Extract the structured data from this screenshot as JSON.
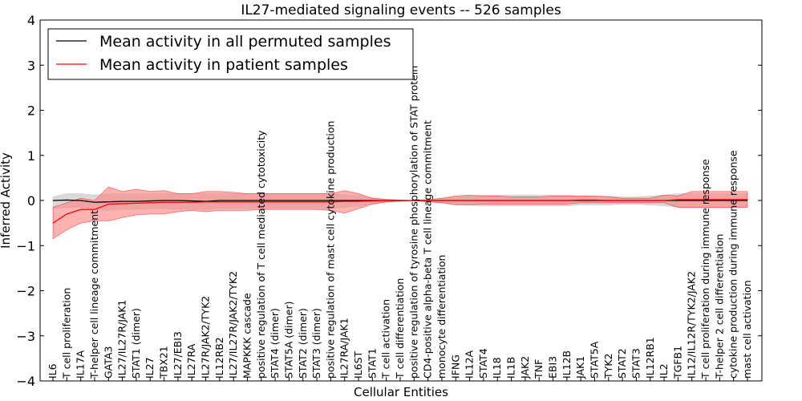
{
  "chart_data": {
    "type": "line",
    "title": "IL27-mediated signaling events -- 526 samples",
    "xlabel": "Cellular Entities",
    "ylabel": "Inferred Activity",
    "ylim": [
      -4,
      4
    ],
    "yticks": [
      "−4",
      "−3",
      "−2",
      "−1",
      "0",
      "1",
      "2",
      "3",
      "4"
    ],
    "legend_position": "top-left",
    "colors": {
      "permuted": "#000000",
      "patient": "#ff0000",
      "permuted_band": "#bbbbbb",
      "patient_band": "#ff7f7f"
    },
    "categories": [
      "IL6",
      "T cell proliferation",
      "IL17A",
      "T-helper cell lineage commitment",
      "GATA3",
      "IL27/IL27R/JAK1",
      "STAT1 (dimer)",
      "IL27",
      "TBX21",
      "IL27/EBI3",
      "IL27RA",
      "IL27R/JAK2/TYK2",
      "IL12RB2",
      "IL27/IL27R/JAK2/TYK2",
      "MAPKKK cascade",
      "positive regulation of T cell mediated cytotoxicity",
      "STAT4 (dimer)",
      "STAT5A (dimer)",
      "STAT2 (dimer)",
      "STAT3 (dimer)",
      "positive regulation of mast cell cytokine production",
      "IL27RA/JAK1",
      "IL6ST",
      "STAT1",
      "T cell activation",
      "T cell differentiation",
      "positive regulation of tyrosine phosphorylation of STAT protein",
      "CD4-positive alpha-beta T cell lineage commitment",
      "monocyte differentiation",
      "IFNG",
      "IL12A",
      "STAT4",
      "IL18",
      "IL1B",
      "JAK2",
      "TNF",
      "EBI3",
      "IL12B",
      "JAK1",
      "STAT5A",
      "TYK2",
      "STAT2",
      "STAT3",
      "IL12RB1",
      "IL2",
      "TGFB1",
      "IL12/IL12R/TYK2/JAK2",
      "T cell proliferation during immune response",
      "T-helper 2 cell differentiation",
      "cytokine production during immune response",
      "mast cell activation"
    ],
    "series": [
      {
        "name": "Mean activity in all permuted samples",
        "values": [
          0.0,
          0.01,
          0.0,
          -0.04,
          -0.03,
          -0.02,
          -0.02,
          -0.01,
          0.0,
          0.0,
          -0.01,
          -0.02,
          0.0,
          0.0,
          0.0,
          0.0,
          0.0,
          0.0,
          0.0,
          0.0,
          0.0,
          0.0,
          0.0,
          0.0,
          0.0,
          0.0,
          0.0,
          0.0,
          0.0,
          0.0,
          0.0,
          0.0,
          0.0,
          0.0,
          0.0,
          0.0,
          0.0,
          0.0,
          0.0,
          0.0,
          0.0,
          0.0,
          0.0,
          0.0,
          0.0,
          0.0,
          0.0,
          0.0,
          0.0,
          0.0,
          0.0
        ],
        "lower": [
          -0.18,
          -0.15,
          -0.15,
          -0.2,
          -0.22,
          -0.2,
          -0.2,
          -0.18,
          -0.18,
          -0.2,
          -0.2,
          -0.2,
          -0.18,
          -0.18,
          -0.18,
          -0.18,
          -0.18,
          -0.18,
          -0.18,
          -0.18,
          -0.18,
          -0.15,
          -0.12,
          -0.08,
          -0.04,
          -0.02,
          0.0,
          -0.02,
          -0.05,
          -0.08,
          -0.1,
          -0.12,
          -0.12,
          -0.12,
          -0.12,
          -0.12,
          -0.12,
          -0.12,
          -0.1,
          -0.1,
          -0.1,
          -0.08,
          -0.08,
          -0.1,
          -0.12,
          -0.15,
          -0.15,
          -0.15,
          -0.15,
          -0.15,
          -0.15
        ],
        "upper": [
          0.08,
          0.15,
          0.15,
          0.12,
          0.15,
          0.15,
          0.15,
          0.15,
          0.15,
          0.15,
          0.15,
          0.15,
          0.15,
          0.15,
          0.15,
          0.15,
          0.15,
          0.15,
          0.15,
          0.15,
          0.15,
          0.13,
          0.1,
          0.06,
          0.03,
          0.01,
          0.0,
          0.02,
          0.05,
          0.08,
          0.1,
          0.12,
          0.12,
          0.12,
          0.12,
          0.12,
          0.12,
          0.12,
          0.1,
          0.1,
          0.1,
          0.08,
          0.08,
          0.1,
          0.12,
          0.15,
          0.15,
          0.15,
          0.15,
          0.15,
          0.15
        ]
      },
      {
        "name": "Mean activity in patient samples",
        "values": [
          -0.5,
          -0.3,
          -0.2,
          -0.2,
          -0.08,
          -0.07,
          -0.06,
          -0.05,
          -0.04,
          -0.04,
          -0.04,
          -0.03,
          -0.03,
          -0.03,
          -0.03,
          -0.03,
          -0.03,
          -0.03,
          -0.03,
          -0.03,
          -0.03,
          -0.02,
          -0.02,
          -0.01,
          0.0,
          0.0,
          0.0,
          0.0,
          0.0,
          0.0,
          0.0,
          0.0,
          0.0,
          0.0,
          0.0,
          0.0,
          0.0,
          0.0,
          0.01,
          0.01,
          0.0,
          0.0,
          0.0,
          0.0,
          0.0,
          0.02,
          0.02,
          0.02,
          0.02,
          0.02,
          0.02
        ],
        "lower": [
          -0.85,
          -0.65,
          -0.5,
          -0.45,
          -0.45,
          -0.38,
          -0.32,
          -0.3,
          -0.3,
          -0.25,
          -0.22,
          -0.25,
          -0.22,
          -0.22,
          -0.22,
          -0.2,
          -0.2,
          -0.2,
          -0.2,
          -0.2,
          -0.22,
          -0.28,
          -0.18,
          -0.08,
          -0.03,
          -0.01,
          0.0,
          -0.03,
          -0.05,
          -0.1,
          -0.1,
          -0.08,
          -0.08,
          -0.08,
          -0.08,
          -0.08,
          -0.08,
          -0.08,
          -0.05,
          -0.05,
          -0.05,
          -0.05,
          -0.05,
          -0.05,
          -0.05,
          -0.15,
          -0.15,
          -0.15,
          -0.15,
          -0.15,
          -0.15
        ],
        "upper": [
          -0.15,
          -0.05,
          0.05,
          0.0,
          0.3,
          0.2,
          0.25,
          0.2,
          0.22,
          0.15,
          0.15,
          0.2,
          0.2,
          0.18,
          0.15,
          0.15,
          0.15,
          0.15,
          0.15,
          0.15,
          0.15,
          0.22,
          0.15,
          0.05,
          0.02,
          0.01,
          0.0,
          0.02,
          0.05,
          0.1,
          0.12,
          0.1,
          0.1,
          0.08,
          0.08,
          0.08,
          0.1,
          0.1,
          0.1,
          0.1,
          0.08,
          0.05,
          0.05,
          0.05,
          0.12,
          0.1,
          0.2,
          0.2,
          0.2,
          0.2,
          0.2
        ]
      }
    ]
  }
}
